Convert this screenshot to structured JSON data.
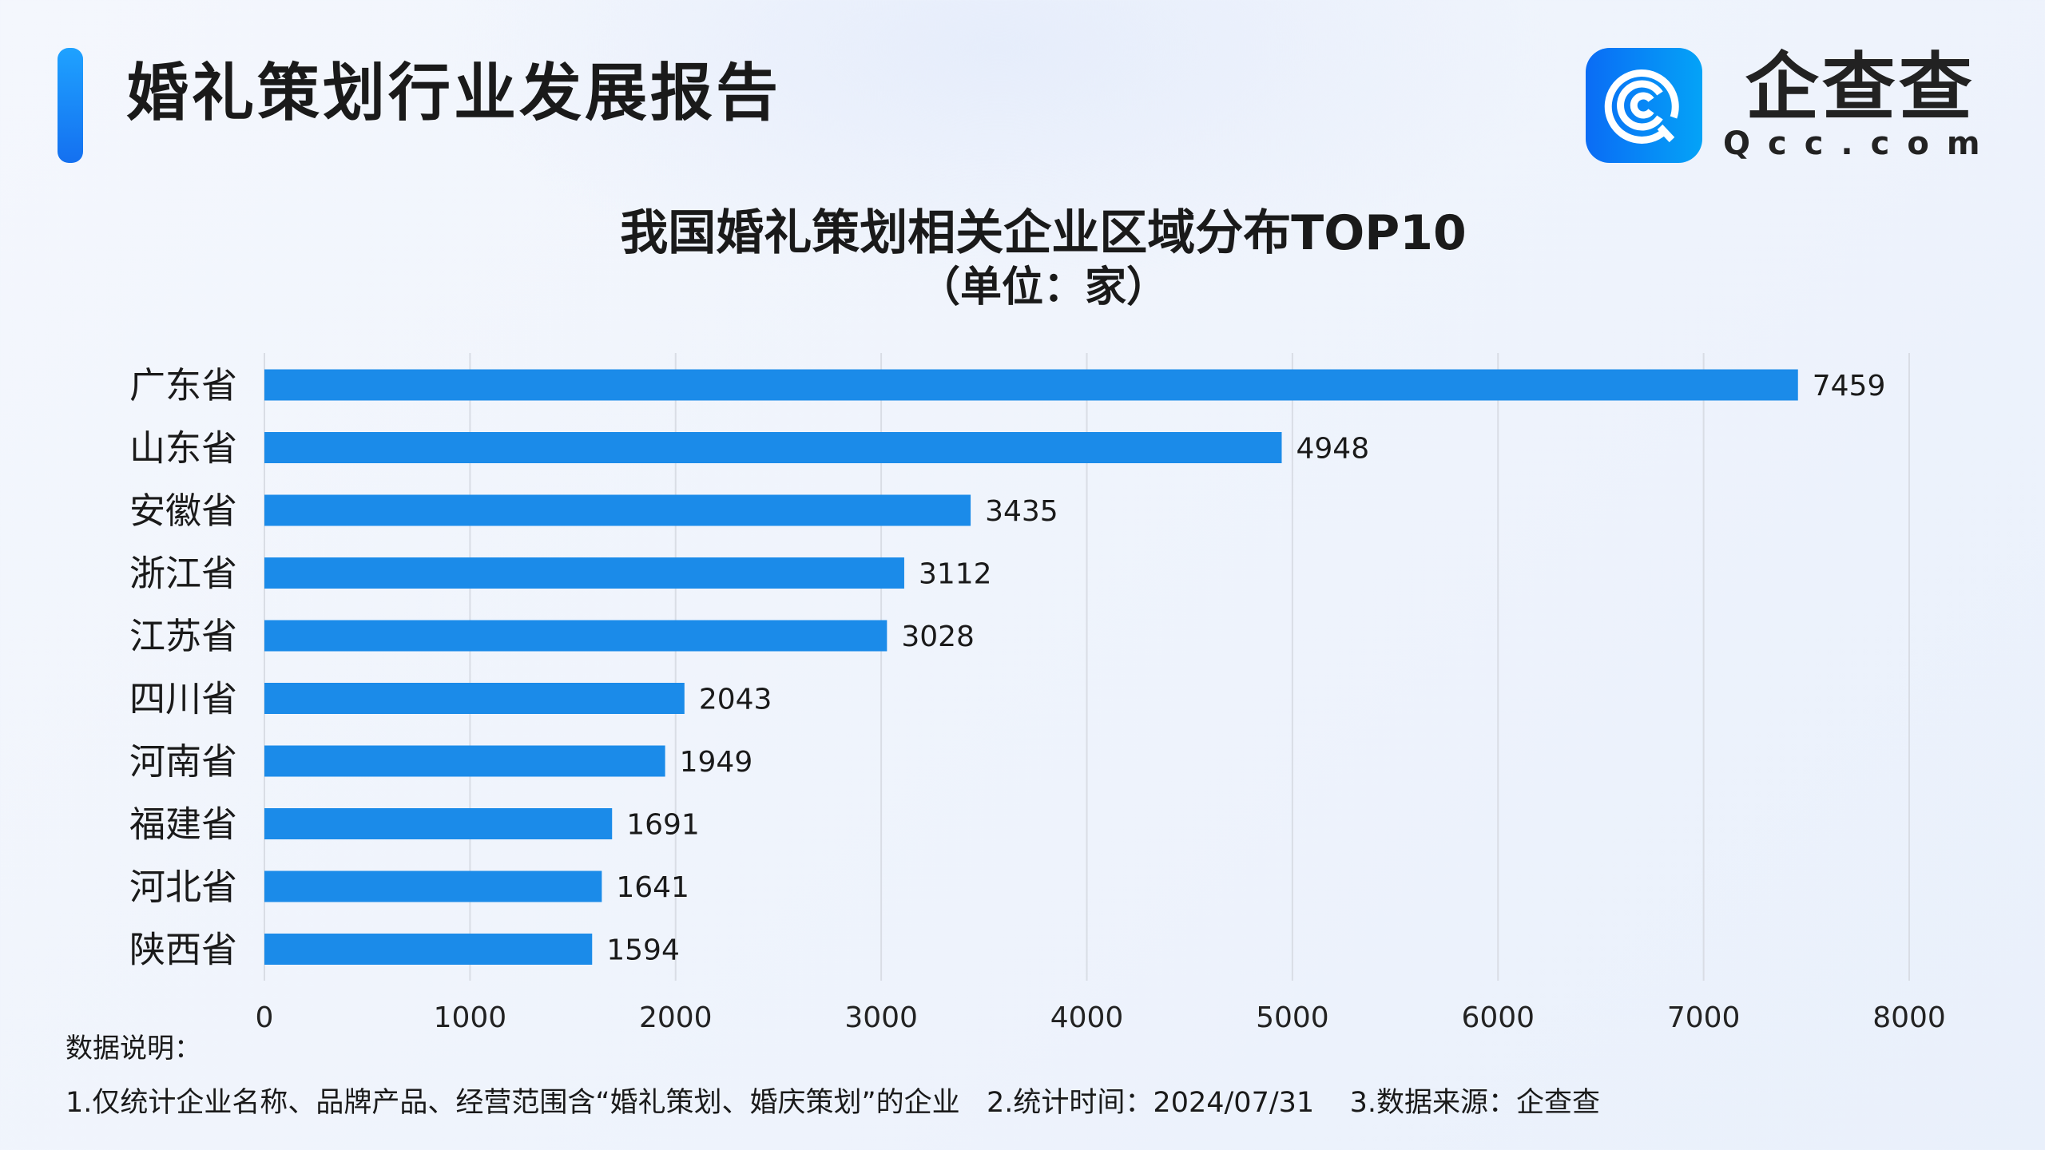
{
  "header": {
    "title": "婚礼策划行业发展报告"
  },
  "logo": {
    "cn": "企查查",
    "en": "Qcc.com"
  },
  "chart_data": {
    "type": "bar",
    "orientation": "horizontal",
    "title": "我国婚礼策划相关企业区域分布TOP10",
    "subtitle": "（单位：家）",
    "categories": [
      "广东省",
      "山东省",
      "安徽省",
      "浙江省",
      "江苏省",
      "四川省",
      "河南省",
      "福建省",
      "河北省",
      "陕西省"
    ],
    "values": [
      7459,
      4948,
      3435,
      3112,
      3028,
      2043,
      1949,
      1691,
      1641,
      1594
    ],
    "xlim": [
      0,
      8000
    ],
    "xticks": [
      "0",
      "1000",
      "2000",
      "3000",
      "4000",
      "5000",
      "6000",
      "7000",
      "8000"
    ],
    "grid": "vertical",
    "bar_color": "#1b8be9"
  },
  "notes": {
    "heading": "数据说明：",
    "text": "1.仅统计企业名称、品牌产品、经营范围含“婚礼策划、婚庆策划”的企业   2.统计时间：2024/07/31    3.数据来源：企查查"
  }
}
